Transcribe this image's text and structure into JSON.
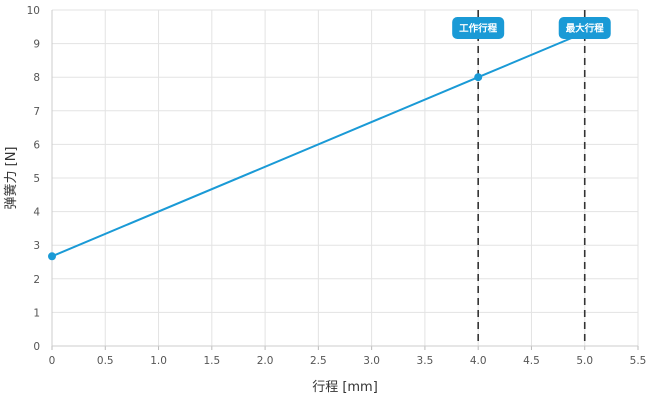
{
  "chart_data": {
    "type": "line",
    "xlabel": "行程 [mm]",
    "ylabel": "弹簧力 [N]",
    "xlim": [
      0,
      5.5
    ],
    "ylim": [
      0,
      10
    ],
    "x_ticks": [
      "0",
      "0.5",
      "1.0",
      "1.5",
      "2.0",
      "2.5",
      "3.0",
      "3.5",
      "4.0",
      "4.5",
      "5.0",
      "5.5"
    ],
    "y_ticks": [
      "0",
      "1",
      "2",
      "3",
      "4",
      "5",
      "6",
      "7",
      "8",
      "9",
      "10"
    ],
    "grid": true,
    "series": [
      {
        "x": [
          0,
          4.0,
          5.0
        ],
        "y": [
          2.67,
          8.0,
          9.33
        ],
        "marked_points": [
          [
            0,
            2.67
          ],
          [
            4.0,
            8.0
          ]
        ],
        "color": "#1a9ad6"
      }
    ],
    "reference_lines": [
      {
        "x": 4.0,
        "label": "工作行程",
        "style": "dashed"
      },
      {
        "x": 5.0,
        "label": "最大行程",
        "style": "dashed"
      }
    ],
    "colors": {
      "line": "#1a9ad6",
      "callout": "#1a9ad6",
      "grid": "#e3e3e3",
      "ref_line": "#333333"
    }
  }
}
